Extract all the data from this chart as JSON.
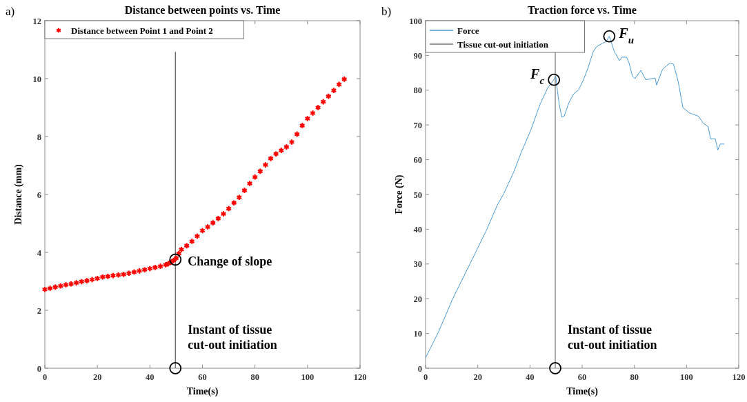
{
  "chart_data": [
    {
      "type": "scatter",
      "title": "Distance between points vs. Time",
      "xlabel": "Time(s)",
      "ylabel": "Distance (mm)",
      "xlim": [
        0,
        120
      ],
      "xticks": [
        0,
        20,
        40,
        60,
        80,
        100,
        120
      ],
      "ylim": [
        0,
        12
      ],
      "yticks": [
        0,
        2,
        4,
        6,
        8,
        10,
        12
      ],
      "legend": "top left",
      "marker": "cross",
      "grid": false,
      "x": [
        0,
        2,
        4,
        6,
        8,
        10,
        12,
        14,
        16,
        18,
        20,
        22,
        24,
        26,
        28,
        30,
        32,
        34,
        36,
        38,
        40,
        42,
        44,
        46,
        47,
        48,
        49,
        50,
        51,
        52,
        54,
        56,
        58,
        60,
        62,
        64,
        66,
        68,
        70,
        72,
        74,
        76,
        78,
        80,
        82,
        84,
        86,
        88,
        90,
        92,
        94,
        96,
        98,
        100,
        102,
        104,
        106,
        108,
        110,
        112,
        114
      ],
      "series": [
        {
          "name": "Distance between Point 1 and Point 2",
          "color": "#ff0000",
          "values": [
            2.72,
            2.76,
            2.8,
            2.84,
            2.88,
            2.91,
            2.95,
            2.99,
            3.02,
            3.06,
            3.1,
            3.15,
            3.17,
            3.2,
            3.22,
            3.24,
            3.28,
            3.32,
            3.36,
            3.4,
            3.44,
            3.48,
            3.52,
            3.57,
            3.61,
            3.66,
            3.72,
            3.8,
            3.96,
            4.1,
            4.23,
            4.38,
            4.56,
            4.75,
            4.88,
            5.02,
            5.17,
            5.33,
            5.51,
            5.71,
            5.9,
            6.14,
            6.38,
            6.6,
            6.8,
            7.02,
            7.24,
            7.4,
            7.52,
            7.64,
            7.81,
            8.08,
            8.38,
            8.62,
            8.81,
            9.0,
            9.2,
            9.39,
            9.59,
            9.8,
            9.98
          ]
        }
      ],
      "ref_lines": [
        {
          "axis": "x",
          "value": 49.7,
          "color": "#555555"
        }
      ],
      "annotations": [
        "a)",
        {
          "text": "Change of slope",
          "x": 49.7,
          "y": 3.75
        },
        {
          "text": "Instant of tissue cut-out initiation",
          "x": 49.7,
          "y": 0
        }
      ]
    },
    {
      "type": "line",
      "title": "Traction force vs. Time",
      "xlabel": "Time(s)",
      "ylabel": "Force (N)",
      "xlim": [
        0,
        120
      ],
      "xticks": [
        0,
        20,
        40,
        60,
        80,
        100,
        120
      ],
      "ylim": [
        0,
        100
      ],
      "yticks": [
        0,
        10,
        20,
        30,
        40,
        50,
        60,
        70,
        80,
        90,
        100
      ],
      "legend": "top left",
      "grid": false,
      "series": [
        {
          "name": "Force",
          "color": "#4a9bd6",
          "x": [
            0,
            5,
            10.4,
            17,
            23.5,
            27.4,
            30,
            33.8,
            36.6,
            40.3,
            43.9,
            46.7,
            49.4,
            49.9,
            50.5,
            51.2,
            52.2,
            53.1,
            55,
            56.8,
            58.6,
            60.5,
            62.3,
            64.2,
            65.5,
            67.8,
            69.2,
            70.4,
            71.5,
            72.4,
            74.3,
            75.2,
            77,
            77.9,
            79.3,
            80.2,
            82.5,
            84.4,
            88,
            88.5,
            90.8,
            93.6,
            95,
            96.8,
            98.6,
            101,
            104.6,
            106.4,
            108.3,
            109.2,
            111,
            112,
            112.9,
            114.5
          ],
          "values": [
            3,
            10.5,
            20,
            30,
            40,
            46.8,
            50.3,
            56.5,
            62,
            68.5,
            76,
            80.5,
            83.3,
            84,
            80,
            76,
            72.3,
            72.5,
            76.5,
            79,
            80,
            83,
            86.5,
            91,
            92.5,
            93.5,
            94,
            95.5,
            93,
            91,
            88.5,
            89.5,
            89.5,
            88,
            84,
            83.3,
            85.7,
            83,
            83.5,
            81.5,
            86,
            87.8,
            87.5,
            82.5,
            75,
            73.5,
            72.5,
            70.5,
            69.5,
            66,
            66,
            62.8,
            64.5,
            64.5
          ]
        }
      ],
      "ref_lines": [
        {
          "axis": "x",
          "value": 49.7,
          "label": "Tissue cut-out initiation",
          "color": "#777777"
        }
      ],
      "annotations": [
        "b)",
        {
          "text": "F$_{c}$",
          "x": 49.2,
          "y": 83
        },
        {
          "text": "F$_{u}$",
          "x": 70.4,
          "y": 95.5
        },
        {
          "text": "Instant of tissue cut-out initiation",
          "x": 49.7,
          "y": 0
        }
      ]
    }
  ]
}
